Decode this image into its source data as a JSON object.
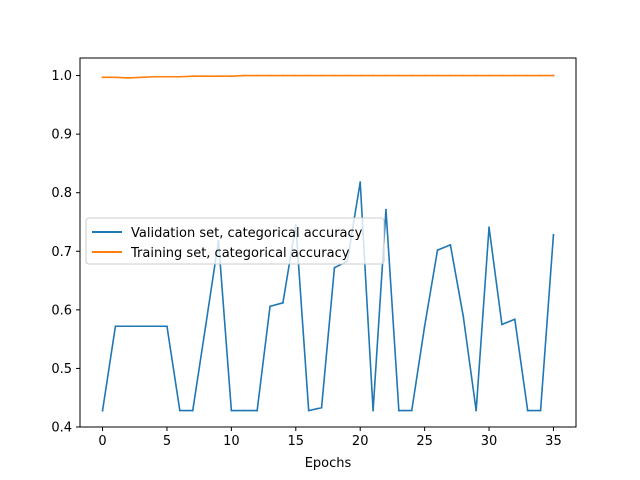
{
  "chart_data": {
    "type": "line",
    "title": "",
    "xlabel": "Epochs",
    "ylabel": "",
    "xlim": [
      -1.75,
      36.75
    ],
    "ylim": [
      0.4,
      1.03
    ],
    "xticks": [
      0,
      5,
      10,
      15,
      20,
      25,
      30,
      35
    ],
    "xtick_labels": [
      "0",
      "5",
      "10",
      "15",
      "20",
      "25",
      "30",
      "35"
    ],
    "yticks": [
      0.4,
      0.5,
      0.6,
      0.7,
      0.8,
      0.9,
      1.0
    ],
    "ytick_labels": [
      "0.4",
      "0.5",
      "0.6",
      "0.7",
      "0.8",
      "0.9",
      "1.0"
    ],
    "grid": false,
    "legend_position": "center-left",
    "x": [
      0,
      1,
      2,
      3,
      4,
      5,
      6,
      7,
      8,
      9,
      10,
      11,
      12,
      13,
      14,
      15,
      16,
      17,
      18,
      19,
      20,
      21,
      22,
      23,
      24,
      25,
      26,
      27,
      28,
      29,
      30,
      31,
      32,
      33,
      34,
      35
    ],
    "series": [
      {
        "name": "Validation set, categorical accuracy",
        "color": "#1f77b4",
        "values": [
          0.428,
          0.572,
          0.572,
          0.572,
          0.572,
          0.572,
          0.428,
          0.428,
          0.572,
          0.718,
          0.428,
          0.428,
          0.428,
          0.606,
          0.612,
          0.745,
          0.428,
          0.433,
          0.672,
          0.683,
          0.818,
          0.428,
          0.771,
          0.428,
          0.428,
          0.572,
          0.702,
          0.711,
          0.589,
          0.428,
          0.741,
          0.575,
          0.584,
          0.428,
          0.428,
          0.728
        ]
      },
      {
        "name": "Training set, categorical accuracy",
        "color": "#ff7f0e",
        "values": [
          0.997,
          0.997,
          0.996,
          0.997,
          0.998,
          0.998,
          0.998,
          0.999,
          0.999,
          0.999,
          0.999,
          1.0,
          1.0,
          1.0,
          1.0,
          1.0,
          1.0,
          1.0,
          1.0,
          1.0,
          1.0,
          1.0,
          1.0,
          1.0,
          1.0,
          1.0,
          1.0,
          1.0,
          1.0,
          1.0,
          1.0,
          1.0,
          1.0,
          1.0,
          1.0,
          1.0
        ]
      }
    ]
  }
}
